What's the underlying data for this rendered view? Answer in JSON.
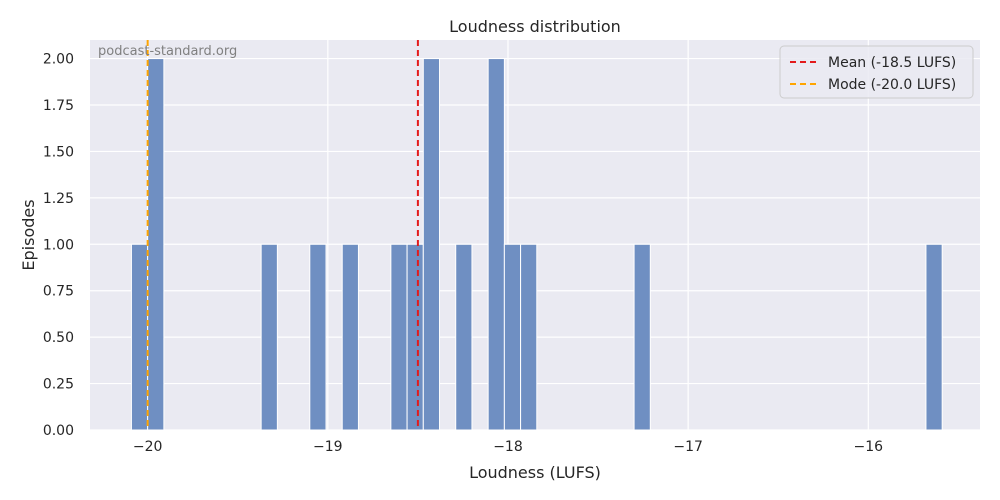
{
  "chart_data": {
    "type": "bar",
    "title": "Loudness distribution",
    "xlabel": "Loudness (LUFS)",
    "ylabel": "Episodes",
    "watermark": "podcast-standard.org",
    "xlim": [
      -20.32,
      -15.38
    ],
    "ylim": [
      0,
      2.1
    ],
    "bin_width": 0.09,
    "grid": true,
    "legend_position": "top-right",
    "x_ticks": [
      -20,
      -19,
      -18,
      -17,
      -16
    ],
    "x_tick_labels": [
      "−20",
      "−19",
      "−18",
      "−17",
      "−16"
    ],
    "y_ticks": [
      0,
      0.25,
      0.5,
      0.75,
      1.0,
      1.25,
      1.5,
      1.75,
      2.0
    ],
    "y_tick_labels": [
      "0.00",
      "0.25",
      "0.50",
      "0.75",
      "1.00",
      "1.25",
      "1.50",
      "1.75",
      "2.00"
    ],
    "bins": [
      {
        "x_start": -20.09,
        "count": 1
      },
      {
        "x_start": -20.0,
        "count": 2
      },
      {
        "x_start": -19.37,
        "count": 1
      },
      {
        "x_start": -19.1,
        "count": 1
      },
      {
        "x_start": -18.92,
        "count": 1
      },
      {
        "x_start": -18.65,
        "count": 1
      },
      {
        "x_start": -18.56,
        "count": 1
      },
      {
        "x_start": -18.47,
        "count": 2
      },
      {
        "x_start": -18.29,
        "count": 1
      },
      {
        "x_start": -18.11,
        "count": 2
      },
      {
        "x_start": -18.02,
        "count": 1
      },
      {
        "x_start": -17.93,
        "count": 1
      },
      {
        "x_start": -17.3,
        "count": 1
      },
      {
        "x_start": -15.68,
        "count": 1
      }
    ],
    "reference_lines": [
      {
        "label": "Mean (-18.5 LUFS)",
        "x": -18.5,
        "color": "#e31a1c",
        "style": "dashed"
      },
      {
        "label": "Mode (-20.0 LUFS)",
        "x": -20.0,
        "color": "#ffa500",
        "style": "dashed"
      }
    ],
    "colors": {
      "bar": "#6f8fc2",
      "bar_edge": "#ffffff",
      "plot_background": "#eaeaf2",
      "grid": "#ffffff"
    }
  }
}
